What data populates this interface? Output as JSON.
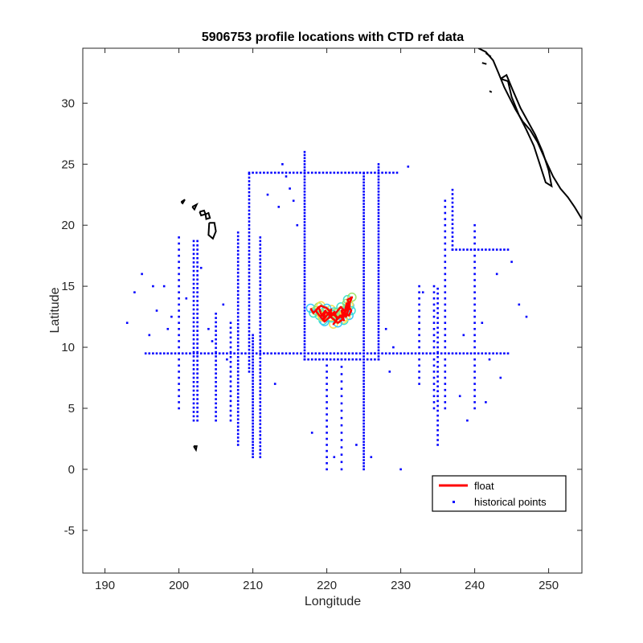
{
  "chart_data": {
    "type": "scatter",
    "title": "5906753 profile locations with CTD ref data",
    "xlabel": "Longitude",
    "ylabel": "Latitude",
    "xlim": [
      187,
      254.5
    ],
    "ylim": [
      -8.5,
      34.5
    ],
    "xticks": [
      190,
      200,
      210,
      220,
      230,
      240,
      250
    ],
    "yticks": [
      -5,
      0,
      5,
      10,
      15,
      20,
      25,
      30
    ],
    "grid": false,
    "legend": {
      "placement": "bottom-right",
      "entries": [
        {
          "label": "float",
          "color": "#ff0000",
          "style": "line"
        },
        {
          "label": "historical points",
          "color": "#0000ff",
          "style": "marker"
        }
      ]
    },
    "series": [
      {
        "name": "float",
        "color": "#ff0000",
        "x": [
          217.8,
          218.2,
          218.9,
          219.3,
          219.8,
          219.5,
          220.1,
          220.6,
          220.3,
          221.0,
          221.4,
          220.9,
          221.8,
          222.3,
          222.0,
          222.6,
          223.1,
          222.8,
          223.4,
          223.0,
          222.5,
          221.9,
          221.2,
          220.4,
          219.7,
          219.0,
          218.5,
          219.2,
          220.0,
          220.8,
          221.6,
          222.4,
          223.0,
          223.3,
          222.7,
          222.2,
          221.5,
          220.7,
          219.9,
          219.4
        ],
        "y": [
          13.2,
          12.8,
          13.3,
          12.6,
          13.0,
          12.2,
          12.7,
          13.1,
          12.4,
          12.9,
          12.3,
          11.9,
          12.6,
          12.2,
          13.0,
          12.5,
          13.4,
          13.9,
          14.1,
          13.5,
          12.9,
          13.3,
          12.8,
          12.5,
          12.1,
          12.6,
          13.0,
          13.4,
          13.2,
          12.7,
          12.4,
          12.8,
          12.6,
          13.0,
          13.6,
          12.3,
          12.0,
          12.4,
          12.9,
          12.5
        ]
      },
      {
        "name": "historical points",
        "color": "#0000ff",
        "marker": "point",
        "groups": [
          {
            "kind": "hline",
            "y": 24.3,
            "x0": 209.5,
            "x1": 229.5,
            "step": 0.5
          },
          {
            "kind": "hline",
            "y": 9.5,
            "x0": 195.5,
            "x1": 244.5,
            "step": 0.5
          },
          {
            "kind": "hline",
            "y": 9.0,
            "x0": 217.0,
            "x1": 227.0,
            "step": 0.5
          },
          {
            "kind": "hline",
            "y": 18.0,
            "x0": 237.0,
            "x1": 244.5,
            "step": 0.5
          },
          {
            "kind": "vline",
            "x": 217.0,
            "y0": 9.0,
            "y1": 26.0,
            "step": 0.25
          },
          {
            "kind": "vline",
            "x": 225.0,
            "y0": 0.0,
            "y1": 24.3,
            "step": 0.25
          },
          {
            "kind": "vline",
            "x": 227.0,
            "y0": 9.0,
            "y1": 25.0,
            "step": 0.25
          },
          {
            "kind": "vline",
            "x": 209.5,
            "y0": 8.0,
            "y1": 24.3,
            "step": 0.3
          },
          {
            "kind": "vline",
            "x": 210.0,
            "y0": 1.0,
            "y1": 11.0,
            "step": 0.25
          },
          {
            "kind": "vline",
            "x": 211.0,
            "y0": 1.0,
            "y1": 19.0,
            "step": 0.3
          },
          {
            "kind": "vline",
            "x": 208.0,
            "y0": 2.0,
            "y1": 19.5,
            "step": 0.3
          },
          {
            "kind": "vline",
            "x": 207.0,
            "y0": 4.0,
            "y1": 12.0,
            "step": 0.4
          },
          {
            "kind": "vline",
            "x": 205.0,
            "y0": 4.0,
            "y1": 13.0,
            "step": 0.35
          },
          {
            "kind": "vline",
            "x": 202.0,
            "y0": 4.0,
            "y1": 19.0,
            "step": 0.35
          },
          {
            "kind": "vline",
            "x": 202.5,
            "y0": 4.0,
            "y1": 19.0,
            "step": 0.35
          },
          {
            "kind": "vline",
            "x": 200.0,
            "y0": 5.0,
            "y1": 19.0,
            "step": 0.5
          },
          {
            "kind": "vline",
            "x": 220.0,
            "y0": 0.0,
            "y1": 9.0,
            "step": 0.5
          },
          {
            "kind": "vline",
            "x": 222.0,
            "y0": 0.0,
            "y1": 9.0,
            "step": 0.6
          },
          {
            "kind": "vline",
            "x": 235.0,
            "y0": 2.0,
            "y1": 15.0,
            "step": 0.4
          },
          {
            "kind": "vline",
            "x": 234.5,
            "y0": 5.0,
            "y1": 15.0,
            "step": 0.5
          },
          {
            "kind": "vline",
            "x": 237.0,
            "y0": 18.0,
            "y1": 23.0,
            "step": 0.35
          },
          {
            "kind": "vline",
            "x": 236.0,
            "y0": 5.0,
            "y1": 22.0,
            "step": 0.5
          },
          {
            "kind": "vline",
            "x": 240.0,
            "y0": 5.0,
            "y1": 20.0,
            "step": 0.5
          },
          {
            "kind": "vline",
            "x": 232.5,
            "y0": 7.0,
            "y1": 15.0,
            "step": 0.5
          }
        ],
        "x": [
          193.0,
          194.0,
          195.0,
          196.0,
          197.0,
          198.0,
          199.0,
          201.0,
          203.0,
          204.0,
          206.0,
          212.0,
          213.0,
          214.0,
          215.0,
          216.0,
          218.0,
          221.0,
          224.0,
          226.0,
          228.0,
          229.0,
          230.0,
          231.0,
          233.0,
          238.0,
          239.0,
          241.0,
          242.0,
          243.0,
          245.0,
          246.0,
          247.0,
          214.5,
          213.5,
          215.5,
          196.5,
          198.5,
          204.5,
          206.5,
          243.5,
          241.5,
          238.5,
          226.5,
          228.5
        ],
        "y": [
          12.0,
          14.5,
          16.0,
          11.0,
          13.0,
          15.0,
          12.5,
          14.0,
          16.5,
          11.5,
          13.5,
          22.5,
          7.0,
          25.0,
          23.0,
          20.0,
          3.0,
          1.0,
          2.0,
          1.0,
          11.5,
          10.0,
          0.0,
          24.8,
          14.5,
          6.0,
          4.0,
          12.0,
          9.0,
          16.0,
          17.0,
          13.5,
          12.5,
          24.0,
          21.5,
          22.0,
          15.0,
          11.5,
          10.5,
          9.0,
          7.5,
          5.5,
          11.0,
          9.5,
          8.0
        ]
      }
    ],
    "coastline_color": "#000000"
  }
}
